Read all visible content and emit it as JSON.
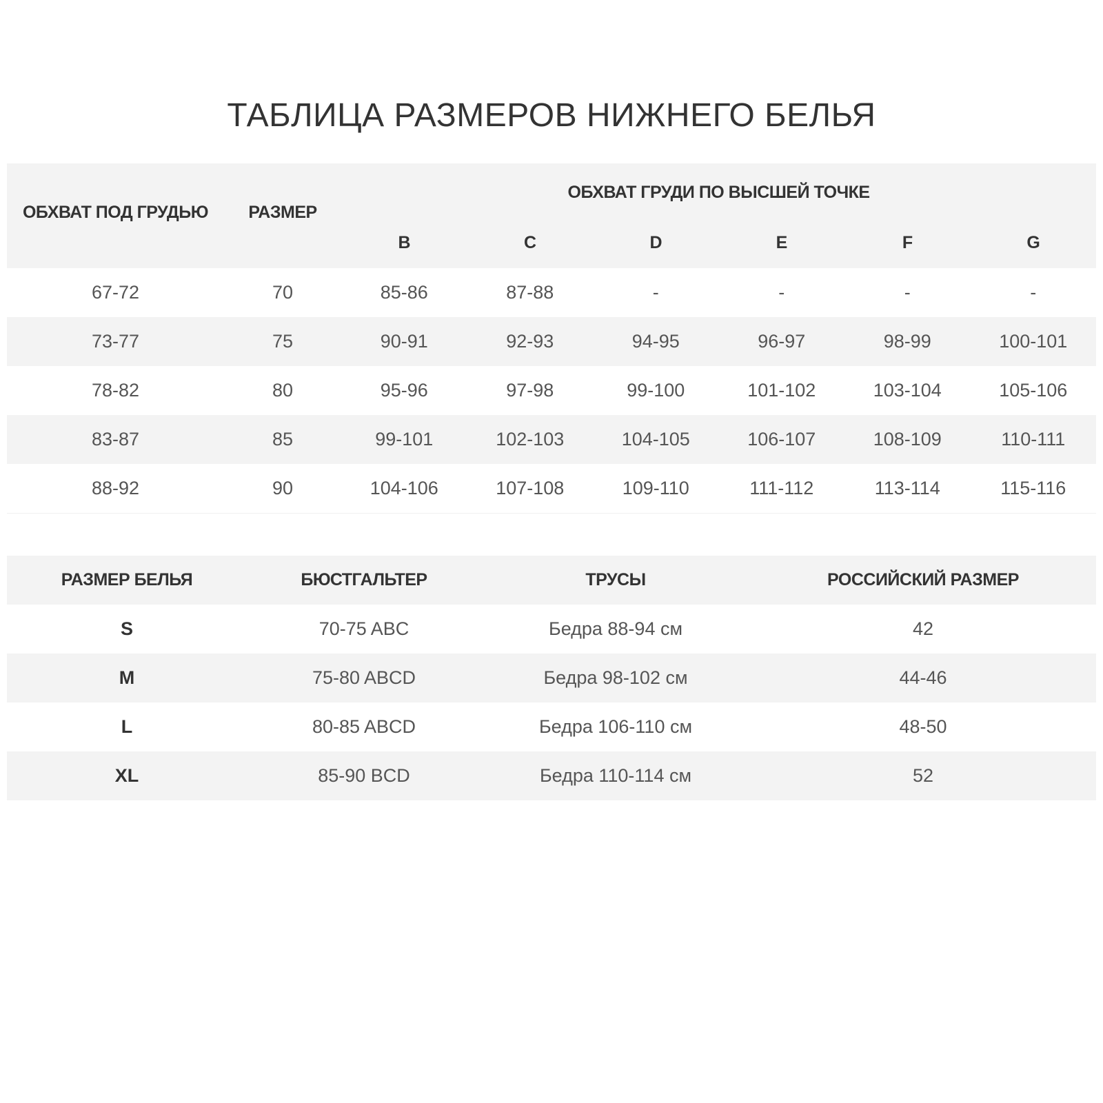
{
  "title": "ТАБЛИЦА РАЗМЕРОВ НИЖНЕГО БЕЛЬЯ",
  "table1": {
    "headers": {
      "underbust": "ОБХВАТ ПОД ГРУДЬЮ",
      "size": "РАЗМЕР",
      "bust": "ОБХВАТ ГРУДИ ПО ВЫСШЕЙ ТОЧКЕ"
    },
    "cups": [
      "B",
      "C",
      "D",
      "E",
      "F",
      "G"
    ],
    "rows": [
      [
        "67-72",
        "70",
        "85-86",
        "87-88",
        "-",
        "-",
        "-",
        "-"
      ],
      [
        "73-77",
        "75",
        "90-91",
        "92-93",
        "94-95",
        "96-97",
        "98-99",
        "100-101"
      ],
      [
        "78-82",
        "80",
        "95-96",
        "97-98",
        "99-100",
        "101-102",
        "103-104",
        "105-106"
      ],
      [
        "83-87",
        "85",
        "99-101",
        "102-103",
        "104-105",
        "106-107",
        "108-109",
        "110-111"
      ],
      [
        "88-92",
        "90",
        "104-106",
        "107-108",
        "109-110",
        "111-112",
        "113-114",
        "115-116"
      ]
    ]
  },
  "table2": {
    "headers": [
      "РАЗМЕР БЕЛЬЯ",
      "БЮСТГАЛЬТЕР",
      "ТРУСЫ",
      "РОССИЙСКИЙ РАЗМЕР"
    ],
    "rows": [
      [
        "S",
        "70-75 ABC",
        "Бедра 88-94 см",
        "42"
      ],
      [
        "M",
        "75-80 ABCD",
        "Бедра 98-102 см",
        "44-46"
      ],
      [
        "L",
        "80-85 ABCD",
        "Бедра 106-110 см",
        "48-50"
      ],
      [
        "XL",
        "85-90 BCD",
        "Бедра 110-114 см",
        "52"
      ]
    ]
  }
}
